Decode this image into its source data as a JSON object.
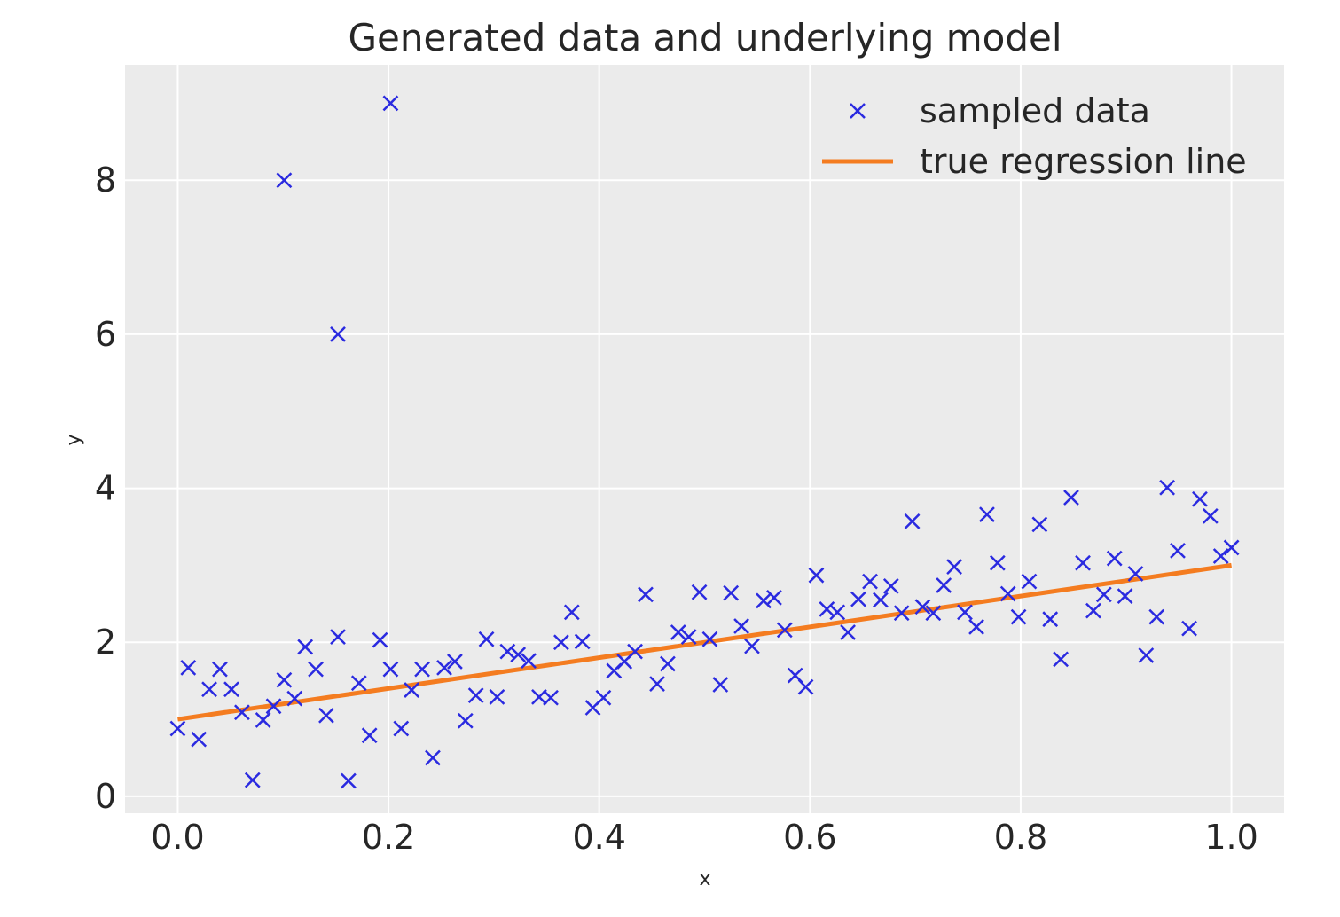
{
  "chart_data": {
    "type": "scatter",
    "title": "Generated data and underlying model",
    "xlabel": "x",
    "ylabel": "y",
    "xlim": [
      -0.05,
      1.05
    ],
    "ylim": [
      -0.22,
      9.5
    ],
    "xticks": [
      0.0,
      0.2,
      0.4,
      0.6,
      0.8,
      1.0
    ],
    "xtick_labels": [
      "0.0",
      "0.2",
      "0.4",
      "0.6",
      "0.8",
      "1.0"
    ],
    "yticks": [
      0,
      2,
      4,
      6,
      8
    ],
    "ytick_labels": [
      "0",
      "2",
      "4",
      "6",
      "8"
    ],
    "grid": true,
    "legend_position": "top-right",
    "colors": {
      "background": "#ebebeb",
      "grid": "#ffffff",
      "scatter": "#2a2ae0",
      "line": "#f47c20",
      "text": "#262626"
    },
    "series": [
      {
        "name": "sampled data",
        "kind": "scatter",
        "marker": "x",
        "points": [
          [
            0.0,
            0.88
          ],
          [
            0.01,
            1.67
          ],
          [
            0.02,
            0.74
          ],
          [
            0.03,
            1.39
          ],
          [
            0.04,
            1.65
          ],
          [
            0.051,
            1.39
          ],
          [
            0.061,
            1.09
          ],
          [
            0.071,
            0.21
          ],
          [
            0.081,
            0.99
          ],
          [
            0.091,
            1.17
          ],
          [
            0.101,
            8.0
          ],
          [
            0.101,
            1.51
          ],
          [
            0.111,
            1.27
          ],
          [
            0.121,
            1.94
          ],
          [
            0.131,
            1.65
          ],
          [
            0.141,
            1.05
          ],
          [
            0.152,
            6.0
          ],
          [
            0.152,
            2.07
          ],
          [
            0.162,
            0.2
          ],
          [
            0.172,
            1.47
          ],
          [
            0.182,
            0.79
          ],
          [
            0.192,
            2.03
          ],
          [
            0.202,
            9.0
          ],
          [
            0.202,
            1.65
          ],
          [
            0.212,
            0.88
          ],
          [
            0.222,
            1.38
          ],
          [
            0.232,
            1.65
          ],
          [
            0.242,
            0.5
          ],
          [
            0.253,
            1.67
          ],
          [
            0.263,
            1.75
          ],
          [
            0.273,
            0.98
          ],
          [
            0.283,
            1.31
          ],
          [
            0.293,
            2.04
          ],
          [
            0.303,
            1.29
          ],
          [
            0.313,
            1.88
          ],
          [
            0.323,
            1.84
          ],
          [
            0.333,
            1.76
          ],
          [
            0.343,
            1.29
          ],
          [
            0.354,
            1.28
          ],
          [
            0.364,
            2.0
          ],
          [
            0.374,
            2.39
          ],
          [
            0.384,
            2.01
          ],
          [
            0.394,
            1.15
          ],
          [
            0.404,
            1.28
          ],
          [
            0.414,
            1.63
          ],
          [
            0.424,
            1.75
          ],
          [
            0.434,
            1.88
          ],
          [
            0.444,
            2.62
          ],
          [
            0.455,
            1.46
          ],
          [
            0.465,
            1.72
          ],
          [
            0.475,
            2.13
          ],
          [
            0.485,
            2.07
          ],
          [
            0.495,
            2.65
          ],
          [
            0.505,
            2.04
          ],
          [
            0.515,
            1.45
          ],
          [
            0.525,
            2.64
          ],
          [
            0.535,
            2.21
          ],
          [
            0.545,
            1.95
          ],
          [
            0.556,
            2.54
          ],
          [
            0.566,
            2.58
          ],
          [
            0.576,
            2.16
          ],
          [
            0.586,
            1.57
          ],
          [
            0.596,
            1.42
          ],
          [
            0.606,
            2.87
          ],
          [
            0.616,
            2.43
          ],
          [
            0.626,
            2.39
          ],
          [
            0.636,
            2.13
          ],
          [
            0.646,
            2.56
          ],
          [
            0.657,
            2.79
          ],
          [
            0.667,
            2.55
          ],
          [
            0.677,
            2.73
          ],
          [
            0.687,
            2.38
          ],
          [
            0.697,
            3.57
          ],
          [
            0.707,
            2.46
          ],
          [
            0.717,
            2.38
          ],
          [
            0.727,
            2.74
          ],
          [
            0.737,
            2.98
          ],
          [
            0.747,
            2.39
          ],
          [
            0.758,
            2.2
          ],
          [
            0.768,
            3.66
          ],
          [
            0.778,
            3.03
          ],
          [
            0.788,
            2.63
          ],
          [
            0.798,
            2.33
          ],
          [
            0.808,
            2.79
          ],
          [
            0.818,
            3.53
          ],
          [
            0.828,
            2.3
          ],
          [
            0.838,
            1.78
          ],
          [
            0.848,
            3.88
          ],
          [
            0.859,
            3.03
          ],
          [
            0.869,
            2.41
          ],
          [
            0.879,
            2.62
          ],
          [
            0.889,
            3.09
          ],
          [
            0.899,
            2.6
          ],
          [
            0.909,
            2.89
          ],
          [
            0.919,
            1.83
          ],
          [
            0.929,
            2.33
          ],
          [
            0.939,
            4.01
          ],
          [
            0.949,
            3.19
          ],
          [
            0.96,
            2.18
          ],
          [
            0.97,
            3.86
          ],
          [
            0.98,
            3.64
          ],
          [
            0.99,
            3.12
          ],
          [
            1.0,
            3.23
          ]
        ]
      },
      {
        "name": "true regression line",
        "kind": "line",
        "x": [
          0.0,
          1.0
        ],
        "y": [
          1.0,
          3.0
        ]
      }
    ]
  }
}
